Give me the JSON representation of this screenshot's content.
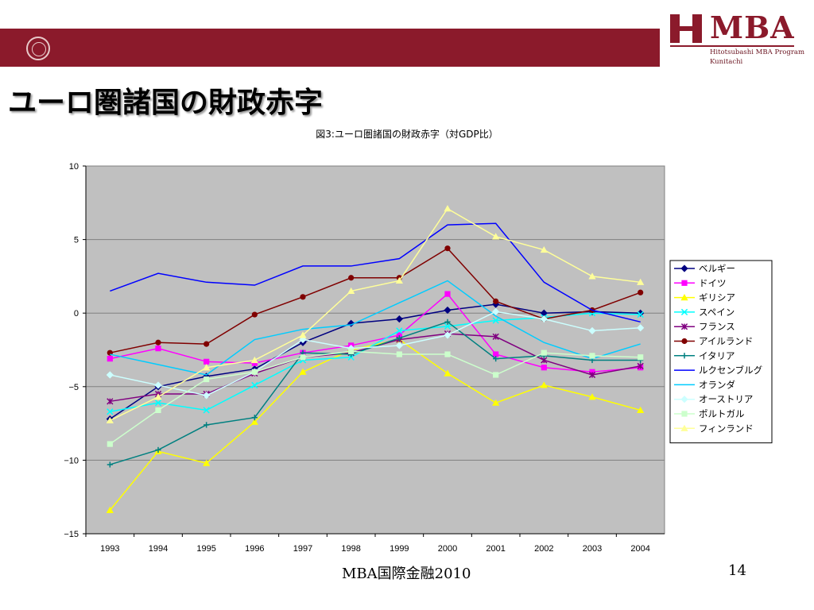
{
  "slide": {
    "title": "ユーロ圏諸国の財政赤字",
    "footer": "MBA国際金融2010",
    "page_number": "14"
  },
  "brand": {
    "logo_text": "MBA",
    "logo_subtitle_1": "Hitotsubashi MBA Program",
    "logo_subtitle_2": "Kunitachi",
    "color": "#8b1a2b"
  },
  "chart_data": {
    "type": "line",
    "title": "図3:ユーロ圏諸国の財政赤字（対GDP比）",
    "xlabel": "",
    "ylabel": "",
    "categories": [
      "1993",
      "1994",
      "1995",
      "1996",
      "1997",
      "1998",
      "1999",
      "2000",
      "2001",
      "2002",
      "2003",
      "2004"
    ],
    "ylim": [
      -15,
      10
    ],
    "yticks": [
      10,
      5,
      0,
      -5,
      -10,
      -15
    ],
    "ytick_labels": [
      "10",
      "5",
      "0",
      "−5",
      "−10",
      "−15"
    ],
    "grid": true,
    "legend": "right",
    "series": [
      {
        "name": "ベルギー",
        "color": "#000080",
        "marker": "diamond",
        "values": [
          -7.2,
          -5.0,
          -4.3,
          -3.8,
          -2.0,
          -0.7,
          -0.4,
          0.2,
          0.6,
          0.0,
          0.1,
          0.0
        ]
      },
      {
        "name": "ドイツ",
        "color": "#ff00ff",
        "marker": "square",
        "values": [
          -3.1,
          -2.4,
          -3.3,
          -3.4,
          -2.7,
          -2.2,
          -1.5,
          1.3,
          -2.8,
          -3.7,
          -4.0,
          -3.7
        ]
      },
      {
        "name": "ギリシア",
        "color": "#ffff00",
        "marker": "triangle",
        "values": [
          -13.4,
          -9.4,
          -10.2,
          -7.4,
          -4.0,
          -2.5,
          -1.8,
          -4.1,
          -6.1,
          -4.9,
          -5.7,
          -6.6
        ]
      },
      {
        "name": "スペイン",
        "color": "#00ffff",
        "marker": "x",
        "values": [
          -6.7,
          -6.1,
          -6.6,
          -4.9,
          -3.2,
          -3.0,
          -1.2,
          -0.9,
          -0.5,
          -0.3,
          0.0,
          -0.1
        ]
      },
      {
        "name": "フランス",
        "color": "#800080",
        "marker": "star",
        "values": [
          -6.0,
          -5.5,
          -5.5,
          -4.1,
          -3.0,
          -2.7,
          -1.8,
          -1.4,
          -1.6,
          -3.2,
          -4.2,
          -3.6
        ]
      },
      {
        "name": "アイルランド",
        "color": "#800000",
        "marker": "circle",
        "values": [
          -2.7,
          -2.0,
          -2.1,
          -0.1,
          1.1,
          2.4,
          2.4,
          4.4,
          0.8,
          -0.4,
          0.2,
          1.4
        ]
      },
      {
        "name": "イタリア",
        "color": "#008080",
        "marker": "plus",
        "values": [
          -10.3,
          -9.3,
          -7.6,
          -7.1,
          -2.7,
          -2.8,
          -1.7,
          -0.6,
          -3.1,
          -2.9,
          -3.2,
          -3.2
        ]
      },
      {
        "name": "ルクセンブルグ",
        "color": "#0000ff",
        "marker": "none",
        "values": [
          1.5,
          2.7,
          2.1,
          1.9,
          3.2,
          3.2,
          3.7,
          6.0,
          6.1,
          2.1,
          0.2,
          -0.6
        ]
      },
      {
        "name": "オランダ",
        "color": "#00ccff",
        "marker": "none",
        "values": [
          -2.8,
          -3.5,
          -4.2,
          -1.8,
          -1.1,
          -0.8,
          0.7,
          2.2,
          -0.2,
          -2.0,
          -3.1,
          -2.1
        ]
      },
      {
        "name": "オーストリア",
        "color": "#ccffff",
        "marker": "diamond",
        "values": [
          -4.2,
          -4.9,
          -5.6,
          -4.0,
          -1.8,
          -2.4,
          -2.2,
          -1.5,
          0.1,
          -0.4,
          -1.2,
          -1.0
        ]
      },
      {
        "name": "ポルトガル",
        "color": "#ccffcc",
        "marker": "square",
        "values": [
          -8.9,
          -6.6,
          -4.5,
          -4.0,
          -3.0,
          -2.6,
          -2.8,
          -2.8,
          -4.2,
          -2.7,
          -2.9,
          -3.0
        ]
      },
      {
        "name": "フィンランド",
        "color": "#ffff99",
        "marker": "triangle",
        "values": [
          -7.3,
          -5.7,
          -3.7,
          -3.2,
          -1.5,
          1.5,
          2.2,
          7.1,
          5.2,
          4.3,
          2.5,
          2.1
        ]
      }
    ]
  }
}
